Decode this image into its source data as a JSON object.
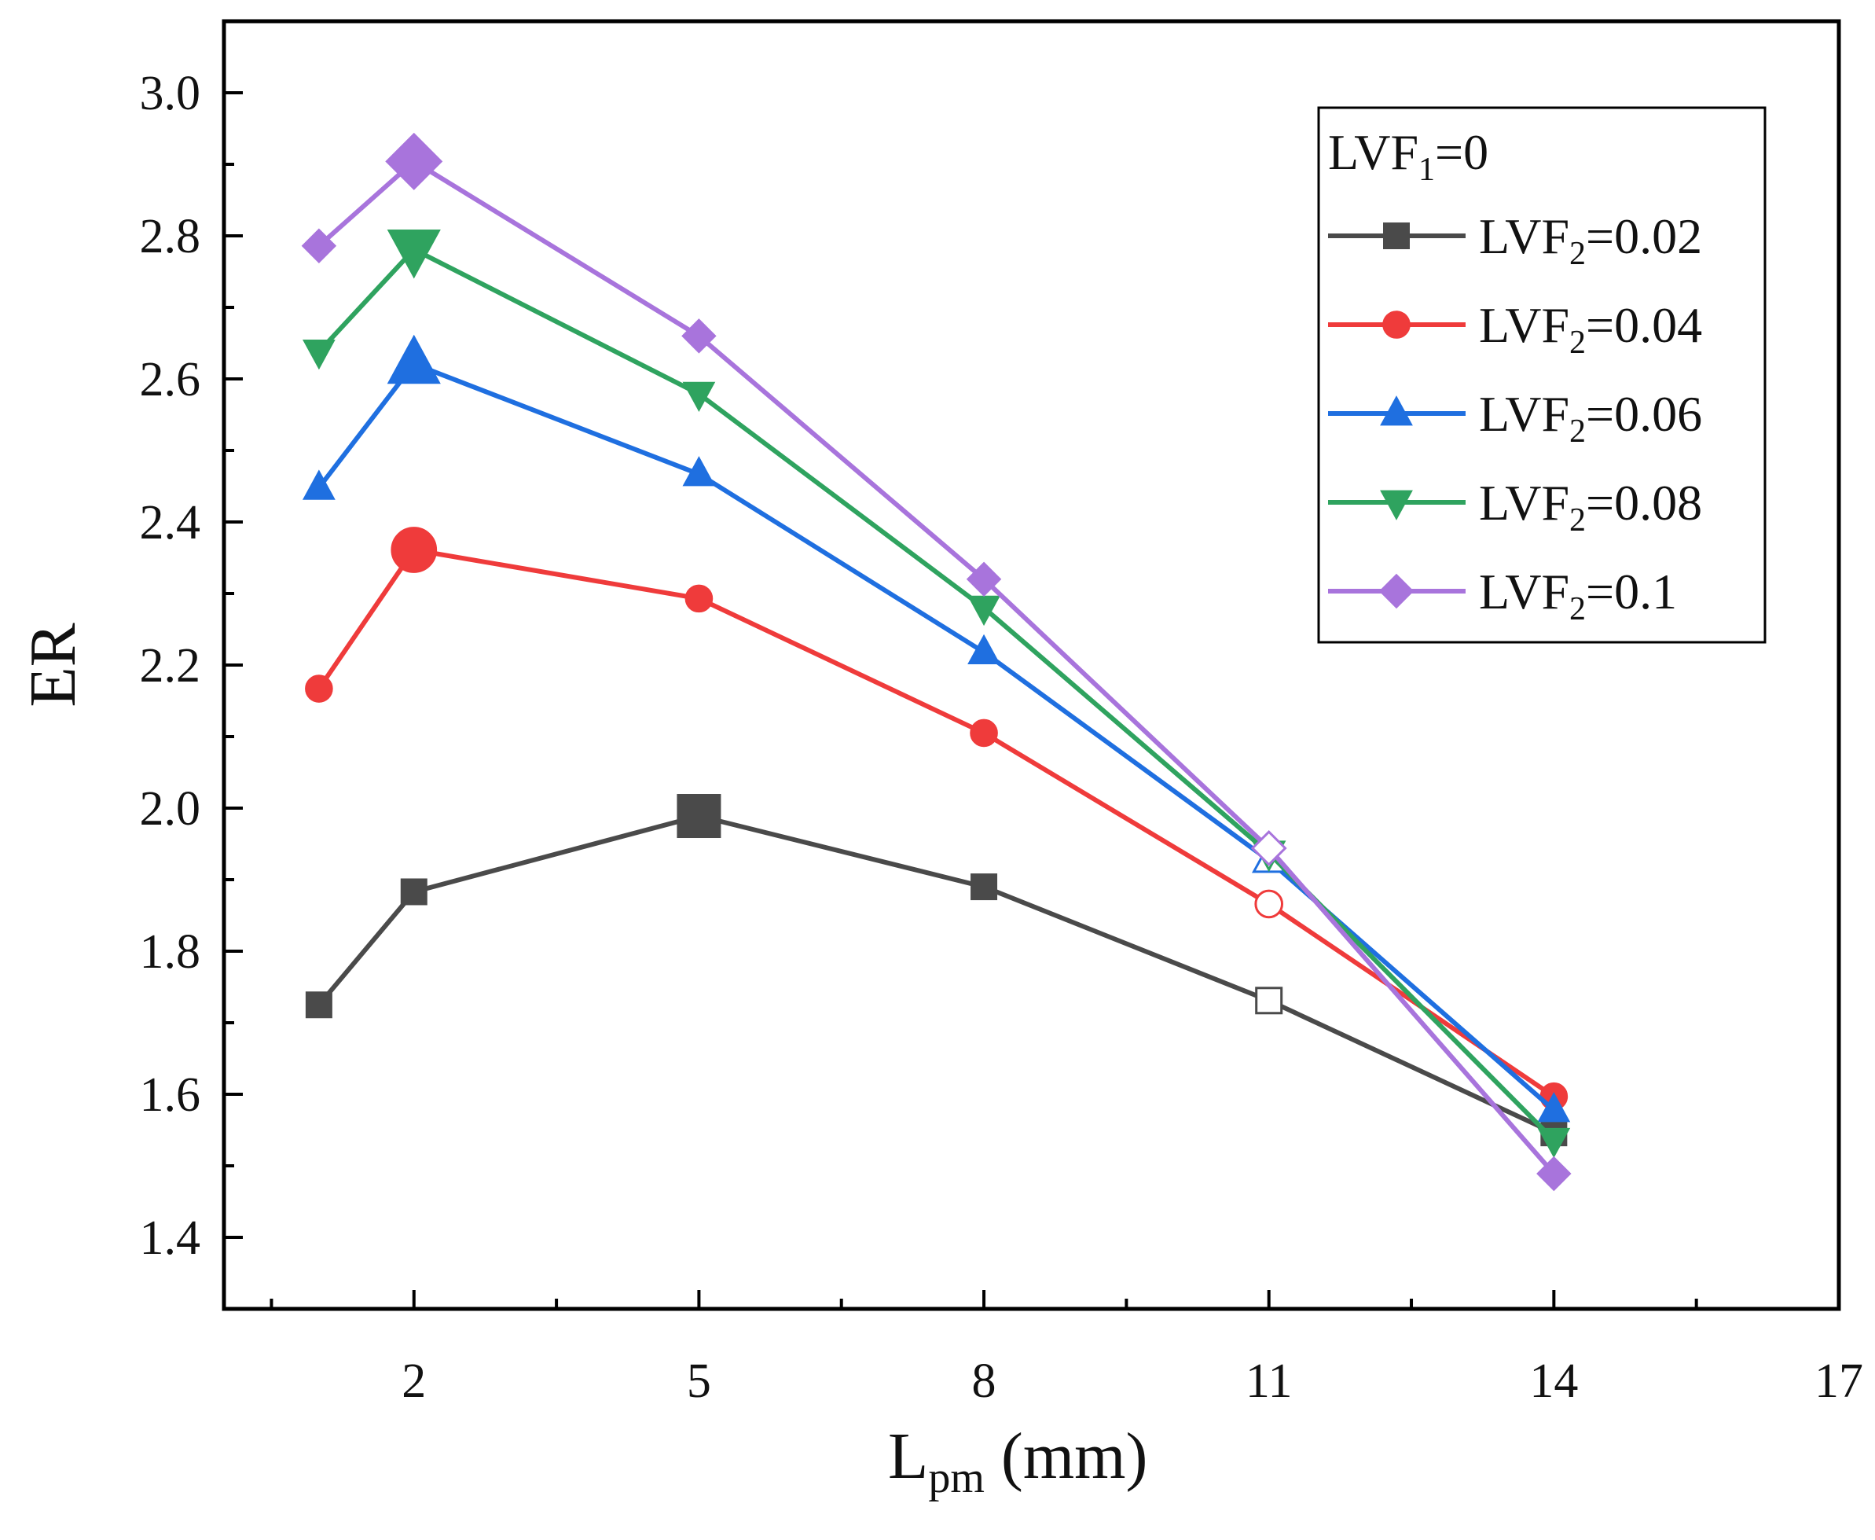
{
  "chart_data": {
    "type": "line",
    "xlabel": "L",
    "xlabel_sub": "pm",
    "xlabel_unit": " (mm)",
    "ylabel": "ER",
    "xlim": [
      0,
      17
    ],
    "ylim": [
      1.3,
      3.1
    ],
    "x_ticks": [
      "2",
      "5",
      "8",
      "11",
      "14",
      "17"
    ],
    "x_tick_values": [
      2,
      5,
      8,
      11,
      14,
      17
    ],
    "y_ticks": [
      "1.4",
      "1.6",
      "1.8",
      "2.0",
      "2.2",
      "2.4",
      "2.6",
      "2.8",
      "3.0"
    ],
    "y_tick_values": [
      1.4,
      1.6,
      1.8,
      2.0,
      2.2,
      2.4,
      2.6,
      2.8,
      3.0
    ],
    "grid": false,
    "legend_placement": "top-right",
    "legend_title": {
      "main": "LVF",
      "sub": "1",
      "rest": "=0"
    },
    "x": [
      1,
      2,
      5,
      8,
      11,
      14
    ],
    "series": [
      {
        "name": "LVF2=0.02",
        "label_main": "LVF",
        "label_sub": "2",
        "label_rest": "=0.02",
        "color": "#4a4a4a",
        "marker": "square",
        "values": [
          1.725,
          1.883,
          1.989,
          1.89,
          1.731,
          1.546
        ],
        "peak_index": 2,
        "hollow_index": 4
      },
      {
        "name": "LVF2=0.04",
        "label_main": "LVF",
        "label_sub": "2",
        "label_rest": "=0.04",
        "color": "#ef3b3b",
        "marker": "circle",
        "values": [
          2.167,
          2.361,
          2.293,
          2.105,
          1.866,
          1.597
        ],
        "peak_index": 1,
        "hollow_index": 4
      },
      {
        "name": "LVF2=0.06",
        "label_main": "LVF",
        "label_sub": "2",
        "label_rest": "=0.06",
        "color": "#1f6fe0",
        "marker": "triangle-up",
        "values": [
          2.448,
          2.621,
          2.467,
          2.218,
          1.927,
          1.578
        ],
        "peak_index": 1,
        "hollow_index": 4
      },
      {
        "name": "LVF2=0.08",
        "label_main": "LVF",
        "label_sub": "2",
        "label_rest": "=0.08",
        "color": "#2fa35f",
        "marker": "triangle-down",
        "values": [
          2.638,
          2.781,
          2.579,
          2.28,
          1.937,
          1.536
        ],
        "peak_index": 1,
        "hollow_index": 4
      },
      {
        "name": "LVF2=0.1",
        "label_main": "LVF",
        "label_sub": "2",
        "label_rest": "=0.1",
        "color": "#a874dc",
        "marker": "diamond",
        "values": [
          2.786,
          2.904,
          2.66,
          2.32,
          1.944,
          1.489
        ],
        "peak_index": 1,
        "hollow_index": 4
      }
    ]
  }
}
